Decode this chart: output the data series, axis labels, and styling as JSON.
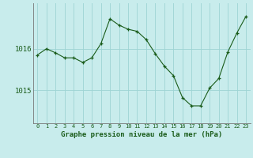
{
  "x": [
    0,
    1,
    2,
    3,
    4,
    5,
    6,
    7,
    8,
    9,
    10,
    11,
    12,
    13,
    14,
    15,
    16,
    17,
    18,
    19,
    20,
    21,
    22,
    23
  ],
  "y": [
    1015.85,
    1016.0,
    1015.9,
    1015.78,
    1015.78,
    1015.67,
    1015.78,
    1016.12,
    1016.72,
    1016.57,
    1016.47,
    1016.42,
    1016.22,
    1015.88,
    1015.58,
    1015.35,
    1014.82,
    1014.62,
    1014.62,
    1015.05,
    1015.28,
    1015.92,
    1016.38,
    1016.78
  ],
  "line_color": "#1a5c1a",
  "marker_color": "#1a5c1a",
  "bg_color": "#c8ecec",
  "grid_color": "#9dd4d4",
  "xlabel": "Graphe pression niveau de la mer (hPa)",
  "xlabel_color": "#1a5c1a",
  "ylabel_ticks": [
    1015,
    1016
  ],
  "ylim": [
    1014.2,
    1017.1
  ],
  "xlim": [
    -0.5,
    23.5
  ],
  "marker": "+"
}
